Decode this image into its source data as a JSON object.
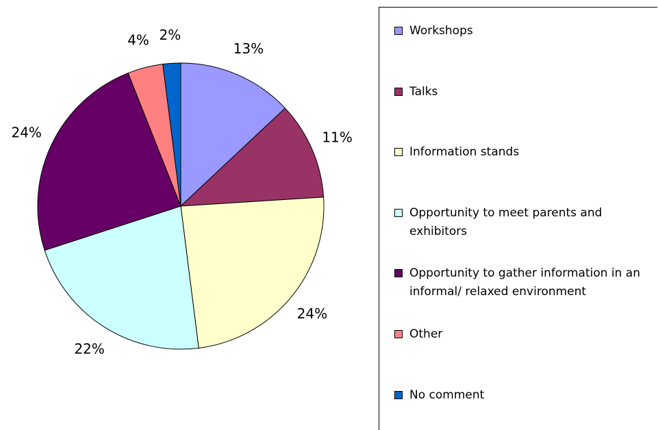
{
  "chart_data": {
    "type": "pie",
    "categories": [
      "Workshops",
      "Talks",
      "Information stands",
      "Opportunity to meet parents and exhibitors",
      "Opportunity to gather information in an informal/ relaxed environment",
      "Other",
      "No comment"
    ],
    "values": [
      13,
      11,
      24,
      22,
      24,
      4,
      2
    ],
    "value_labels": [
      "13%",
      "11%",
      "24%",
      "22%",
      "24%",
      "4%",
      "2%"
    ],
    "colors": [
      "#9999ff",
      "#993366",
      "#ffffcc",
      "#ccffff",
      "#660066",
      "#ff8080",
      "#0066cc"
    ],
    "legend": "right"
  }
}
